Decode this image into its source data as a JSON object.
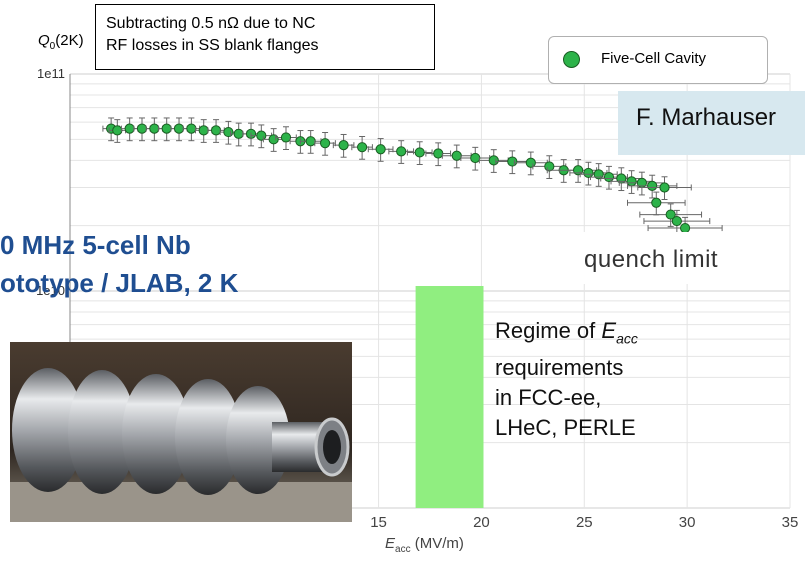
{
  "texts": {
    "y_axis_label_main": "Q",
    "y_axis_label_sub": "0",
    "y_axis_label_suffix": "(2K)",
    "x_axis_label_main": "E",
    "x_axis_label_sub": "acc",
    "x_axis_label_suffix": " (MV/m)",
    "note_line1": "Subtracting 0.5 nΩ due to NC",
    "note_line2": "RF losses in SS blank flanges",
    "legend_label": "Five-Cell Cavity",
    "author": "F. Marhauser",
    "quench_label": "quench limit",
    "regime_line1": "Regime of ",
    "regime_sym": "E",
    "regime_sub": "acc",
    "regime_line2": "requirements",
    "regime_line3": "in FCC-ee,",
    "regime_line4": "LHeC, PERLE",
    "title_line1": "0 MHz 5-cell Nb",
    "title_line2": "ototype / JLAB, 2 K"
  },
  "colors": {
    "marker_fill": "#2db34a",
    "marker_edge": "#1a5c22",
    "regime_band": "#90ee80",
    "title_color": "#1f4e91",
    "author_box": "#d7e8ef"
  },
  "chart_data": {
    "type": "scatter",
    "xlabel": "Eacc (MV/m)",
    "ylabel": "Q0(2K)",
    "yscale": "log",
    "xlim": [
      0,
      35
    ],
    "ylim": [
      1000000000.0,
      100000000000.0
    ],
    "x_ticks": [
      15,
      20,
      25,
      30,
      35
    ],
    "y_tick_labels": [
      "1e11",
      "1e10"
    ],
    "grid": true,
    "legend_position": "top-right",
    "series": [
      {
        "name": "Five-Cell Cavity",
        "x": [
          2.0,
          2.3,
          2.9,
          3.5,
          4.1,
          4.7,
          5.3,
          5.9,
          6.5,
          7.1,
          7.7,
          8.2,
          8.8,
          9.3,
          9.9,
          10.5,
          11.2,
          11.7,
          12.4,
          13.3,
          14.2,
          15.1,
          16.1,
          17.0,
          17.9,
          18.8,
          19.7,
          20.6,
          21.5,
          22.4,
          23.3,
          24.0,
          24.7,
          25.2,
          25.7,
          26.2,
          26.8,
          27.3,
          27.8,
          28.3,
          28.9,
          28.5,
          29.2,
          29.5,
          29.9
        ],
        "y": [
          56000000000.0,
          55000000000.0,
          56000000000.0,
          56000000000.0,
          56000000000.0,
          56000000000.0,
          56000000000.0,
          56000000000.0,
          55000000000.0,
          55000000000.0,
          54000000000.0,
          53000000000.0,
          53000000000.0,
          52000000000.0,
          50000000000.0,
          51000000000.0,
          49000000000.0,
          49000000000.0,
          48000000000.0,
          47000000000.0,
          46000000000.0,
          45000000000.0,
          44000000000.0,
          43500000000.0,
          43000000000.0,
          42000000000.0,
          41000000000.0,
          40000000000.0,
          39500000000.0,
          39000000000.0,
          37500000000.0,
          36000000000.0,
          36000000000.0,
          35000000000.0,
          34500000000.0,
          33500000000.0,
          33000000000.0,
          32000000000.0,
          31500000000.0,
          30500000000.0,
          30000000000.0,
          25500000000.0,
          22500000000.0,
          21000000000.0,
          19500000000.0
        ],
        "x_err": [
          0.4,
          0.4,
          0.4,
          0.4,
          0.4,
          0.4,
          0.4,
          0.4,
          0.4,
          0.4,
          0.4,
          0.4,
          0.4,
          0.5,
          0.5,
          0.5,
          0.5,
          0.5,
          0.5,
          0.5,
          0.5,
          0.6,
          0.6,
          0.6,
          0.6,
          0.7,
          0.7,
          0.7,
          0.8,
          0.8,
          0.8,
          0.8,
          0.9,
          0.9,
          0.9,
          0.9,
          1.0,
          1.0,
          1.1,
          1.2,
          1.3,
          1.4,
          1.5,
          1.6,
          1.8
        ],
        "y_err_frac": 0.12
      }
    ],
    "annotations": {
      "regime_band_x": [
        16.8,
        20.1
      ]
    }
  }
}
